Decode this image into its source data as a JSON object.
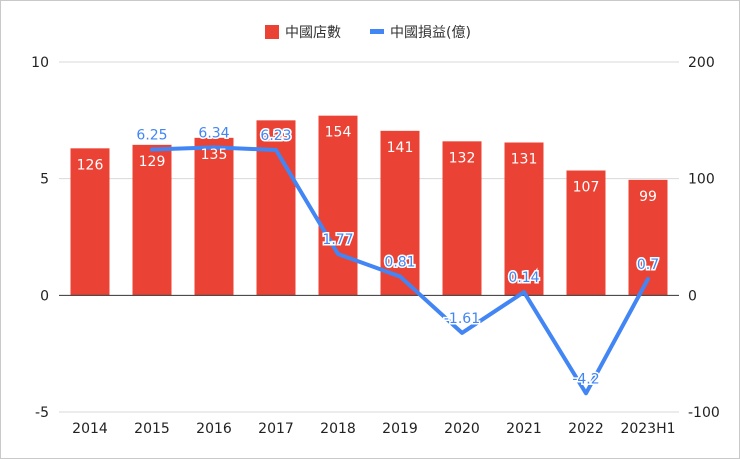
{
  "chart_data": {
    "type": "bar+line",
    "categories": [
      "2014",
      "2015",
      "2016",
      "2017",
      "2018",
      "2019",
      "2020",
      "2021",
      "2022",
      "2023H1"
    ],
    "series": [
      {
        "name": "中國店數",
        "type": "bar",
        "axis": "right",
        "color": "#ea4335",
        "values": [
          126,
          129,
          135,
          150,
          154,
          141,
          132,
          131,
          107,
          99
        ],
        "labels": [
          "126",
          "129",
          "135",
          "150",
          "154",
          "141",
          "132",
          "131",
          "107",
          "99"
        ]
      },
      {
        "name": "中國損益(億)",
        "type": "line",
        "axis": "left",
        "color": "#4285f4",
        "values": [
          null,
          6.25,
          6.34,
          6.23,
          1.77,
          0.81,
          -1.61,
          0.14,
          -4.2,
          0.7
        ],
        "labels": [
          "",
          "6.25",
          "6.34",
          "6.23",
          "1.77",
          "0.81",
          "-1.61",
          "0.14",
          "-4.2",
          "0.7"
        ]
      }
    ],
    "left_axis": {
      "range": [
        -5,
        10
      ],
      "ticks": [
        "-5",
        "0",
        "5",
        "10"
      ]
    },
    "right_axis": {
      "range": [
        -100,
        200
      ],
      "ticks": [
        "-100",
        "0",
        "100",
        "200"
      ]
    },
    "legend": [
      {
        "label": "中國店數",
        "color": "#ea4335",
        "shape": "square"
      },
      {
        "label": "中國損益(億)",
        "color": "#4285f4",
        "shape": "line"
      }
    ],
    "legend_position": "top-center",
    "grid": true
  }
}
